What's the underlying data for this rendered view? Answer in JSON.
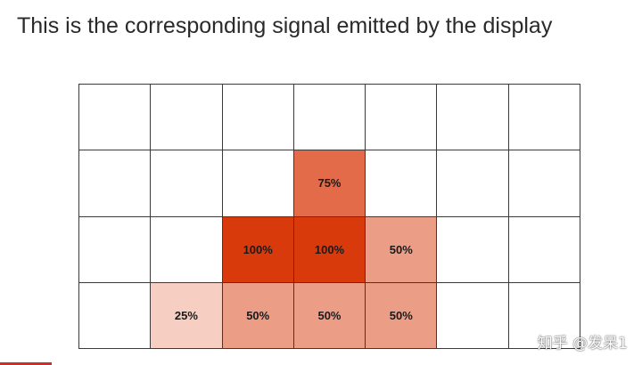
{
  "title": "This is the corresponding signal emitted by the display",
  "grid": {
    "cols": 7,
    "rows": 4,
    "base_color": "#D93A0C",
    "cells": [
      {
        "row": 1,
        "col": 3,
        "label": "75%",
        "intensity": 0.75
      },
      {
        "row": 2,
        "col": 2,
        "label": "100%",
        "intensity": 1.0
      },
      {
        "row": 2,
        "col": 3,
        "label": "100%",
        "intensity": 1.0
      },
      {
        "row": 2,
        "col": 4,
        "label": "50%",
        "intensity": 0.5
      },
      {
        "row": 3,
        "col": 1,
        "label": "25%",
        "intensity": 0.25
      },
      {
        "row": 3,
        "col": 2,
        "label": "50%",
        "intensity": 0.5
      },
      {
        "row": 3,
        "col": 3,
        "label": "50%",
        "intensity": 0.5
      },
      {
        "row": 3,
        "col": 4,
        "label": "50%",
        "intensity": 0.5
      }
    ]
  },
  "watermark": "知乎 @发呆1",
  "colors": {
    "empty": "#FFFFFF",
    "grid_line": "#3A3A3A",
    "watermark_accent": "#C9302C"
  }
}
